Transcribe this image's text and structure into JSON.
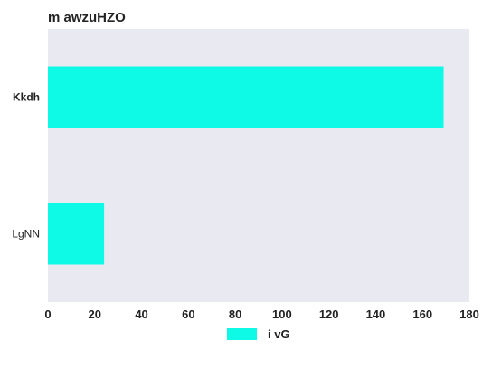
{
  "chart_data": {
    "type": "bar",
    "orientation": "horizontal",
    "title": "m awzuHZO",
    "categories": [
      "Kkdh",
      "LgNN"
    ],
    "bold_categories": [
      "Kkdh"
    ],
    "series": [
      {
        "name": "i vG",
        "values": [
          169,
          24
        ],
        "color": "#0ef9e6"
      }
    ],
    "xlim": [
      0,
      180
    ],
    "x_ticks": [
      0,
      20,
      40,
      60,
      80,
      100,
      120,
      140,
      160,
      180
    ],
    "xlabel": "",
    "ylabel": "",
    "grid": false,
    "plot_background": "#e9e9f2",
    "legend": "bottom-center"
  }
}
